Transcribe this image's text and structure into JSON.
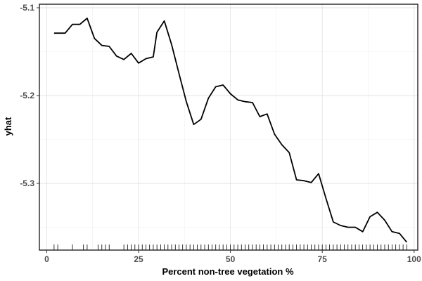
{
  "chart_data": {
    "type": "line",
    "xlabel": "Percent non-tree vegetation %",
    "ylabel": "yhat",
    "xlim": [
      -2,
      101
    ],
    "ylim": [
      -5.376,
      -5.096
    ],
    "x_ticks": [
      0,
      25,
      50,
      75,
      100
    ],
    "x_tick_labels": [
      "0",
      "25",
      "50",
      "75",
      "100"
    ],
    "y_ticks": [
      -5.3,
      -5.2,
      -5.1
    ],
    "y_tick_labels": [
      "-5.3",
      "-5.2",
      "-5.1"
    ],
    "grid": true,
    "series": [
      {
        "color": "#000000",
        "x": [
          2,
          5,
          7,
          9,
          11,
          13,
          15,
          17,
          19,
          21,
          23,
          25,
          27,
          29,
          30,
          32,
          34,
          36,
          38,
          40,
          42,
          44,
          46,
          48,
          50,
          52,
          54,
          56,
          58,
          60,
          62,
          64,
          66,
          68,
          70,
          72,
          74,
          76,
          78,
          80,
          82,
          84,
          86,
          88,
          90,
          92,
          94,
          96,
          98
        ],
        "y": [
          -5.129,
          -5.129,
          -5.119,
          -5.119,
          -5.112,
          -5.135,
          -5.143,
          -5.144,
          -5.155,
          -5.159,
          -5.152,
          -5.163,
          -5.158,
          -5.156,
          -5.128,
          -5.115,
          -5.142,
          -5.175,
          -5.207,
          -5.233,
          -5.227,
          -5.203,
          -5.19,
          -5.188,
          -5.198,
          -5.205,
          -5.207,
          -5.208,
          -5.224,
          -5.221,
          -5.244,
          -5.256,
          -5.265,
          -5.296,
          -5.297,
          -5.299,
          -5.289,
          -5.317,
          -5.344,
          -5.348,
          -5.35,
          -5.35,
          -5.355,
          -5.338,
          -5.333,
          -5.342,
          -5.355,
          -5.357,
          -5.367
        ]
      }
    ],
    "rug": [
      2,
      3,
      7,
      10,
      11,
      14,
      15,
      16,
      17,
      21,
      22,
      23,
      24,
      25,
      26,
      27,
      28,
      29,
      30,
      31,
      32,
      33,
      34,
      35,
      36,
      37,
      38,
      39,
      40,
      41,
      42,
      43,
      44,
      45,
      46,
      47,
      48,
      49,
      50,
      51,
      52,
      53,
      54,
      55,
      56,
      57,
      58,
      59,
      60,
      61,
      62,
      63,
      64,
      65,
      66,
      67,
      68,
      69,
      70,
      71,
      72,
      73,
      74,
      75,
      76,
      77,
      78,
      79,
      80,
      81,
      82,
      83,
      84,
      85,
      86,
      87,
      88,
      89,
      90,
      91,
      92,
      93,
      94,
      95,
      96,
      97,
      98
    ]
  }
}
